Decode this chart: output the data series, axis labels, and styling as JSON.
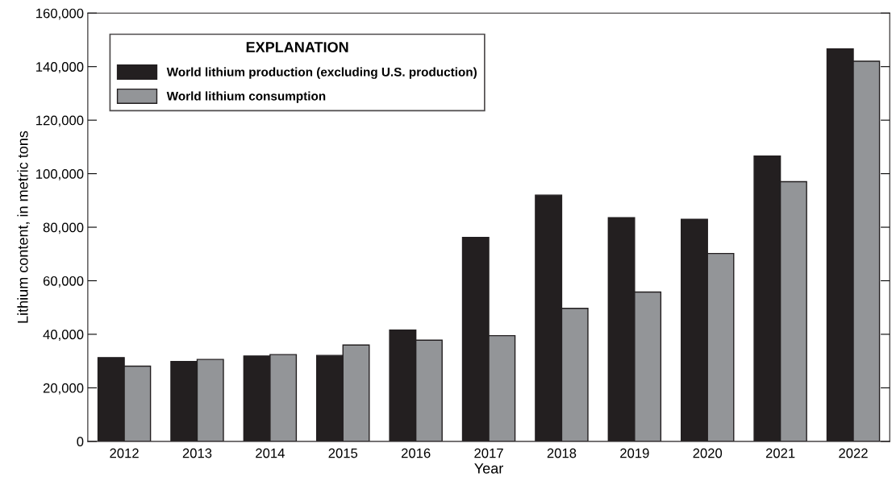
{
  "chart_data": {
    "type": "bar",
    "xlabel": "Year",
    "ylabel": "Lithium content, in metric tons",
    "legend_title": "EXPLANATION",
    "legend": "top left",
    "grid": false,
    "categories": [
      "2012",
      "2013",
      "2014",
      "2015",
      "2016",
      "2017",
      "2018",
      "2019",
      "2020",
      "2021",
      "2022"
    ],
    "series": [
      {
        "name": "World lithium production (excluding U.S. production)",
        "color": "#231f20",
        "values": [
          31300,
          29800,
          31900,
          32100,
          41600,
          76200,
          92000,
          83600,
          83000,
          106600,
          146600
        ]
      },
      {
        "name": "World lithium consumption",
        "color": "#939598",
        "values": [
          28100,
          30600,
          32400,
          36000,
          37800,
          39500,
          49700,
          55800,
          70200,
          97000,
          142000
        ]
      }
    ],
    "ylim": [
      0,
      160000
    ],
    "yticks": [
      {
        "value": 0,
        "label": "0"
      },
      {
        "value": 20000,
        "label": "20,000"
      },
      {
        "value": 40000,
        "label": "40,000"
      },
      {
        "value": 60000,
        "label": "60,000"
      },
      {
        "value": 80000,
        "label": "80,000"
      },
      {
        "value": 100000,
        "label": "100,000"
      },
      {
        "value": 120000,
        "label": "120,000"
      },
      {
        "value": 140000,
        "label": "140,000"
      },
      {
        "value": 160000,
        "label": "160,000"
      }
    ]
  }
}
